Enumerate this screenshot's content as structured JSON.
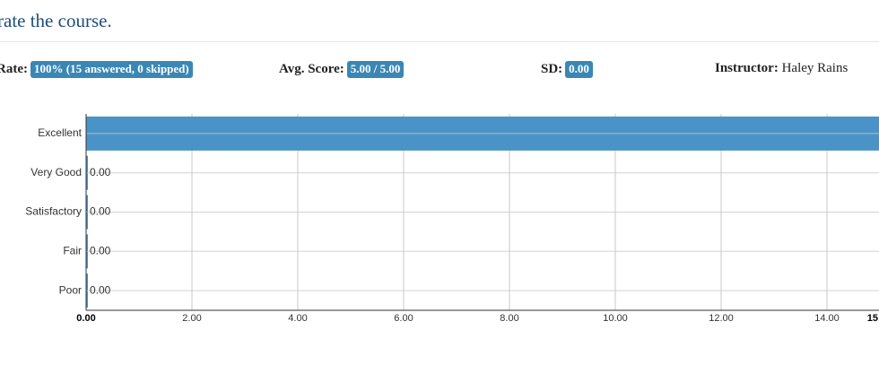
{
  "header": {
    "title": "rate the course."
  },
  "stats": [
    {
      "label": "Rate:",
      "value": "100% (15 answered, 0 skipped)"
    },
    {
      "label": "Avg. Score:",
      "value": "5.00 / 5.00"
    },
    {
      "label": "SD:",
      "value": "0.00"
    },
    {
      "label": "Instructor:",
      "value": "Haley Rains"
    }
  ],
  "chart_data": {
    "type": "bar",
    "orientation": "horizontal",
    "categories": [
      "Excellent",
      "Very Good",
      "Satisfactory",
      "Fair",
      "Poor"
    ],
    "values": [
      15,
      0,
      0,
      0,
      0
    ],
    "value_labels": [
      null,
      "0.00",
      "0.00",
      "0.00",
      "0.00"
    ],
    "color": "#4a93c6",
    "xlim": [
      0,
      15
    ],
    "xticks": [
      {
        "value": 0,
        "label": "0.00"
      },
      {
        "value": 2,
        "label": "2.00"
      },
      {
        "value": 4,
        "label": "4.00"
      },
      {
        "value": 6,
        "label": "6.00"
      },
      {
        "value": 8,
        "label": "8.00"
      },
      {
        "value": 10,
        "label": "10.00"
      },
      {
        "value": 12,
        "label": "12.00"
      },
      {
        "value": 14,
        "label": "14.00"
      },
      {
        "value": 15,
        "label": "15"
      }
    ],
    "grid": true
  }
}
